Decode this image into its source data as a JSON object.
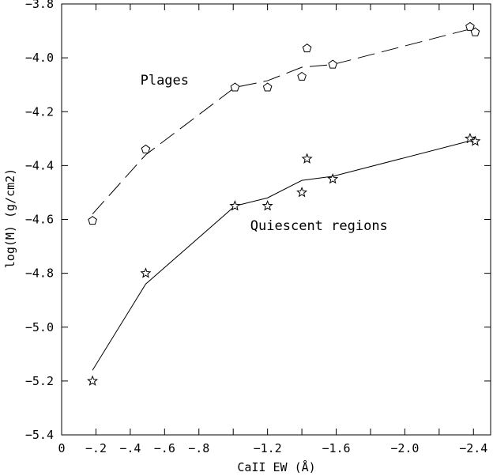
{
  "chart_data": {
    "type": "scatter",
    "xlabel": "CaII EW (Å)",
    "ylabel": "log(M)  (g/cm2)",
    "xlim": [
      0,
      -2.5
    ],
    "ylim": [
      -5.4,
      -3.8
    ],
    "x_ticks": [
      0,
      -0.2,
      -0.4,
      -0.6,
      -0.8,
      -1.0,
      -1.2,
      -1.4,
      -1.6,
      -1.8,
      -2.0,
      -2.2,
      -2.4
    ],
    "x_tick_labels": [
      "0",
      "-.2",
      "-.4",
      "-.6",
      "-.8",
      "",
      "-1.2",
      "",
      "-1.6",
      "",
      "-2.0",
      "",
      "-2.4"
    ],
    "y_ticks": [
      -5.4,
      -5.2,
      -5.0,
      -4.8,
      -4.6,
      -4.4,
      -4.2,
      -4.0,
      -3.8
    ],
    "y_tick_labels": [
      "-5.4",
      "-5.2",
      "-5.0",
      "-4.8",
      "-4.6",
      "-4.4",
      "-4.2",
      "-4.0",
      "-3.8"
    ],
    "grid": false,
    "series": [
      {
        "marker": "pentagon",
        "points": [
          {
            "x": -0.18,
            "y": -4.605
          },
          {
            "x": -0.49,
            "y": -4.34
          },
          {
            "x": -1.01,
            "y": -4.11
          },
          {
            "x": -1.2,
            "y": -4.11
          },
          {
            "x": -1.4,
            "y": -4.07
          },
          {
            "x": -1.43,
            "y": -3.965
          },
          {
            "x": -1.58,
            "y": -4.025
          },
          {
            "x": -2.38,
            "y": -3.885
          },
          {
            "x": -2.41,
            "y": -3.905
          }
        ],
        "fit": {
          "style": "dashed",
          "x": [
            -0.18,
            -0.49,
            -1.01,
            -1.2,
            -1.4,
            -1.58,
            -2.4
          ],
          "y": [
            -4.58,
            -4.36,
            -4.11,
            -4.085,
            -4.035,
            -4.025,
            -3.89
          ]
        }
      },
      {
        "marker": "star",
        "points": [
          {
            "x": -0.18,
            "y": -5.2
          },
          {
            "x": -0.49,
            "y": -4.8
          },
          {
            "x": -1.01,
            "y": -4.55
          },
          {
            "x": -1.2,
            "y": -4.55
          },
          {
            "x": -1.4,
            "y": -4.5
          },
          {
            "x": -1.43,
            "y": -4.375
          },
          {
            "x": -1.58,
            "y": -4.45
          },
          {
            "x": -2.38,
            "y": -4.3
          },
          {
            "x": -2.41,
            "y": -4.31
          }
        ],
        "fit": {
          "style": "solid",
          "x": [
            -0.18,
            -0.49,
            -1.01,
            -1.2,
            -1.4,
            -1.58,
            -2.4
          ],
          "y": [
            -5.16,
            -4.84,
            -4.55,
            -4.52,
            -4.455,
            -4.44,
            -4.305
          ]
        }
      }
    ],
    "annotations": [
      {
        "text": "Plages",
        "x": -0.6,
        "y": -4.1
      },
      {
        "text": "Quiescent regions",
        "x": -1.5,
        "y": -4.64
      }
    ]
  }
}
